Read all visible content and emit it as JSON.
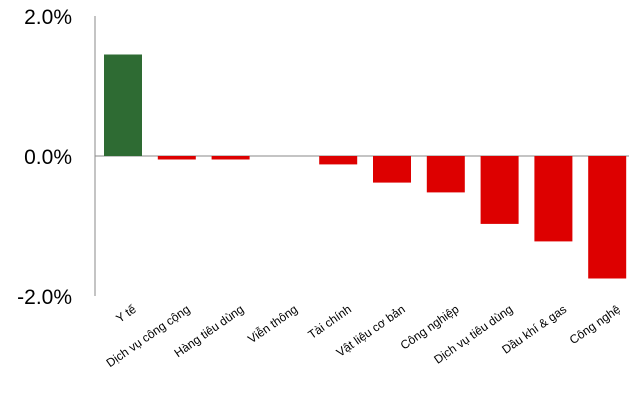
{
  "chart_data": {
    "type": "bar",
    "title": "",
    "xlabel": "",
    "ylabel": "",
    "ylim": [
      -2.0,
      2.0
    ],
    "yticks": [
      "2.0%",
      "0.0%",
      "-2.0%"
    ],
    "categories": [
      "Y tế",
      "Dịch vụ công cộng",
      "Hàng tiêu dùng",
      "Viễn thông",
      "Tài chính",
      "Vật liệu cơ bản",
      "Công nghiệp",
      "Dịch vụ tiêu dùng",
      "Dầu khí & gas",
      "Công nghệ"
    ],
    "values": [
      1.45,
      -0.05,
      -0.05,
      0.0,
      -0.12,
      -0.38,
      -0.52,
      -0.97,
      -1.22,
      -1.75
    ],
    "colors": {
      "positive": "#2e6b33",
      "negative": "#dd0000"
    },
    "grid": false,
    "legend": "none"
  }
}
